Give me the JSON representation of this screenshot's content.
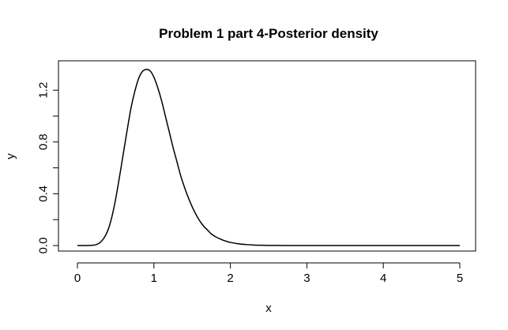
{
  "chart_data": {
    "type": "line",
    "title": "Problem 1 part 4-Posterior density",
    "xlabel": "x",
    "ylabel": "y",
    "xlim": [
      0,
      5
    ],
    "ylim": [
      0,
      1.36
    ],
    "x_ticks": [
      0,
      1,
      2,
      3,
      4,
      5
    ],
    "x_tick_labels": [
      "0",
      "1",
      "2",
      "3",
      "4",
      "5"
    ],
    "y_ticks": [
      0.0,
      0.2,
      0.4,
      0.6,
      0.8,
      1.0,
      1.2
    ],
    "y_tick_labels": [
      "0.0",
      "",
      "0.4",
      "",
      "0.8",
      "",
      "1.2"
    ],
    "grid": false,
    "legend": "none",
    "series": [
      {
        "color": "#000000",
        "x": [
          0,
          0.1,
          0.2,
          0.25,
          0.3,
          0.35,
          0.4,
          0.45,
          0.5,
          0.55,
          0.6,
          0.65,
          0.7,
          0.75,
          0.8,
          0.85,
          0.9,
          0.95,
          1.0,
          1.05,
          1.1,
          1.15,
          1.2,
          1.25,
          1.3,
          1.35,
          1.4,
          1.45,
          1.5,
          1.55,
          1.6,
          1.65,
          1.7,
          1.75,
          1.8,
          1.85,
          1.9,
          1.95,
          2.0,
          2.1,
          2.2,
          2.3,
          2.4,
          2.5,
          2.6,
          2.8,
          3.0,
          3.5,
          4.0,
          4.5,
          5.0
        ],
        "y": [
          0,
          0.0,
          0.002,
          0.008,
          0.025,
          0.06,
          0.12,
          0.22,
          0.36,
          0.53,
          0.71,
          0.89,
          1.06,
          1.19,
          1.29,
          1.345,
          1.36,
          1.35,
          1.3,
          1.22,
          1.12,
          1.0,
          0.88,
          0.76,
          0.65,
          0.54,
          0.45,
          0.37,
          0.3,
          0.24,
          0.19,
          0.15,
          0.12,
          0.09,
          0.07,
          0.055,
          0.042,
          0.032,
          0.024,
          0.014,
          0.008,
          0.004,
          0.002,
          0.001,
          0.0005,
          0.0001,
          0,
          0,
          0,
          0,
          0
        ]
      }
    ]
  }
}
